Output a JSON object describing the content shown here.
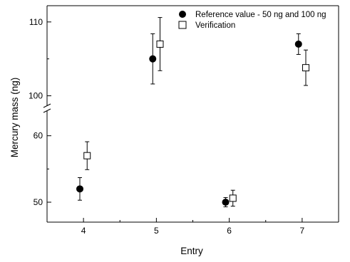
{
  "chart_data": {
    "type": "scatter",
    "xlabel": "Entry",
    "ylabel": "Mercury mass (ng)",
    "x_ticks": [
      4,
      5,
      6,
      7
    ],
    "y_ticks_upper": [
      100,
      110
    ],
    "y_ticks_lower": [
      50,
      60
    ],
    "xlim": [
      3.5,
      7.5
    ],
    "ylim_upper": [
      98.8,
      112.2
    ],
    "ylim_lower": [
      47.0,
      63.5
    ],
    "axis_break": true,
    "grid": false,
    "legend_position": "top-right",
    "series": [
      {
        "name": "Reference value - 50 ng and 100 ng",
        "marker": "filled-circle",
        "x": [
          3.95,
          4.95,
          5.95,
          6.95
        ],
        "y": [
          52.0,
          105.0,
          50.0,
          107.0
        ],
        "error": [
          1.7,
          3.4,
          0.7,
          1.4
        ]
      },
      {
        "name": "Verification",
        "marker": "open-square",
        "x": [
          4.05,
          5.05,
          6.05,
          7.05
        ],
        "y": [
          57.0,
          107.0,
          50.6,
          103.8
        ],
        "error": [
          2.1,
          3.6,
          1.2,
          2.4
        ]
      }
    ]
  }
}
